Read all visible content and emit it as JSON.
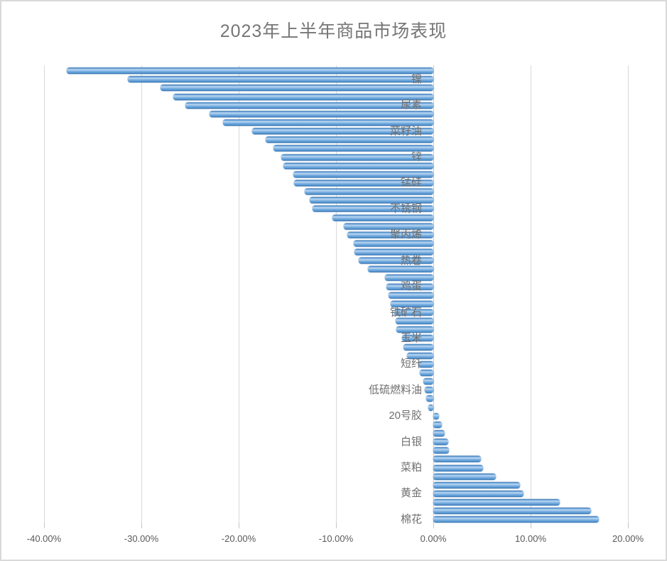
{
  "chart_data": {
    "type": "bar",
    "orientation": "horizontal",
    "title": "2023年上半年商品市场表现",
    "value_unit": "%",
    "x_axis": {
      "min": -40,
      "max": 20,
      "tick_values": [
        -40,
        -30,
        -20,
        -10,
        0,
        10,
        20
      ],
      "tick_labels": [
        "-40.00%",
        "-30.00%",
        "-20.00%",
        "-10.00%",
        "0.00%",
        "10.00%",
        "20.00%"
      ],
      "grid": true
    },
    "label_note": "category labels shown every 3rd bar",
    "bars": [
      {
        "label": "",
        "value": -37.7
      },
      {
        "label": "镍",
        "value": -31.4
      },
      {
        "label": "",
        "value": -28.0
      },
      {
        "label": "",
        "value": -26.7
      },
      {
        "label": "尿素",
        "value": -25.5
      },
      {
        "label": "",
        "value": -23.0
      },
      {
        "label": "",
        "value": -21.6
      },
      {
        "label": "菜籽油",
        "value": -18.6
      },
      {
        "label": "",
        "value": -17.2
      },
      {
        "label": "",
        "value": -16.4
      },
      {
        "label": "锌",
        "value": -15.6
      },
      {
        "label": "",
        "value": -15.4
      },
      {
        "label": "",
        "value": -14.4
      },
      {
        "label": "锰硅",
        "value": -14.3
      },
      {
        "label": "",
        "value": -13.2
      },
      {
        "label": "",
        "value": -12.7
      },
      {
        "label": "不锈钢",
        "value": -12.4
      },
      {
        "label": "",
        "value": -10.4
      },
      {
        "label": "",
        "value": -9.2
      },
      {
        "label": "聚丙烯",
        "value": -8.8
      },
      {
        "label": "",
        "value": -8.2
      },
      {
        "label": "",
        "value": -8.1
      },
      {
        "label": "热卷",
        "value": -7.7
      },
      {
        "label": "",
        "value": -6.7
      },
      {
        "label": "",
        "value": -5.0
      },
      {
        "label": "鸡蛋",
        "value": -4.8
      },
      {
        "label": "",
        "value": -4.6
      },
      {
        "label": "",
        "value": -4.4
      },
      {
        "label": "铁矿石",
        "value": -4.0
      },
      {
        "label": "",
        "value": -3.9
      },
      {
        "label": "",
        "value": -3.8
      },
      {
        "label": "玉米",
        "value": -3.2
      },
      {
        "label": "",
        "value": -3.1
      },
      {
        "label": "",
        "value": -2.7
      },
      {
        "label": "短纤",
        "value": -1.5
      },
      {
        "label": "",
        "value": -1.4
      },
      {
        "label": "",
        "value": -1.0
      },
      {
        "label": "低硫燃料油",
        "value": -0.9
      },
      {
        "label": "",
        "value": -0.7
      },
      {
        "label": "",
        "value": -0.5
      },
      {
        "label": "20号胶",
        "value": 0.6
      },
      {
        "label": "",
        "value": 0.9
      },
      {
        "label": "",
        "value": 1.2
      },
      {
        "label": "白银",
        "value": 1.5
      },
      {
        "label": "",
        "value": 1.6
      },
      {
        "label": "",
        "value": 4.9
      },
      {
        "label": "菜粕",
        "value": 5.1
      },
      {
        "label": "",
        "value": 6.4
      },
      {
        "label": "",
        "value": 8.9
      },
      {
        "label": "黄金",
        "value": 9.3
      },
      {
        "label": "",
        "value": 13.0
      },
      {
        "label": "",
        "value": 16.2
      },
      {
        "label": "棉花",
        "value": 17.0
      }
    ],
    "colors": {
      "bar_fill": "#5b9bd5",
      "bar_edge": "#3f76b0",
      "gridline": "#d9d9d9",
      "axis_line": "#c6c6c6",
      "title_text": "#767676",
      "tick_text": "#595959",
      "category_text": "#6f6f6f",
      "chart_border": "#d9d9d9"
    }
  }
}
